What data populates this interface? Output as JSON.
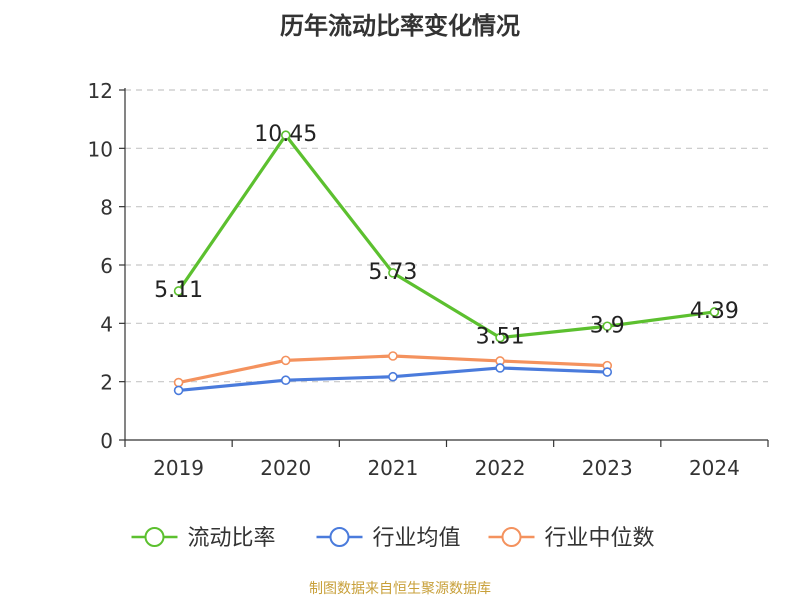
{
  "chart_data": {
    "type": "line",
    "title": "历年流动比率变化情况",
    "categories": [
      "2019",
      "2020",
      "2021",
      "2022",
      "2023",
      "2024"
    ],
    "ylim": [
      0,
      12
    ],
    "yticks": [
      0,
      2,
      4,
      6,
      8,
      10,
      12
    ],
    "xlabel": "",
    "ylabel": "",
    "grid": true,
    "legend_position": "bottom",
    "series": [
      {
        "name": "流动比率",
        "color": "#5cc02f",
        "values": [
          5.11,
          10.45,
          5.73,
          3.51,
          3.9,
          4.39
        ],
        "labels": [
          "5.11",
          "10.45",
          "5.73",
          "3.51",
          "3.9",
          "4.39"
        ],
        "show_labels": true
      },
      {
        "name": "行业均值",
        "color": "#4a7bdc",
        "values": [
          1.7,
          2.05,
          2.17,
          2.47,
          2.33,
          null
        ],
        "show_labels": false
      },
      {
        "name": "行业中位数",
        "color": "#f4925e",
        "values": [
          1.97,
          2.73,
          2.88,
          2.71,
          2.55,
          null
        ],
        "show_labels": false
      }
    ]
  },
  "footer": {
    "source": "制图数据来自恒生聚源数据库"
  }
}
